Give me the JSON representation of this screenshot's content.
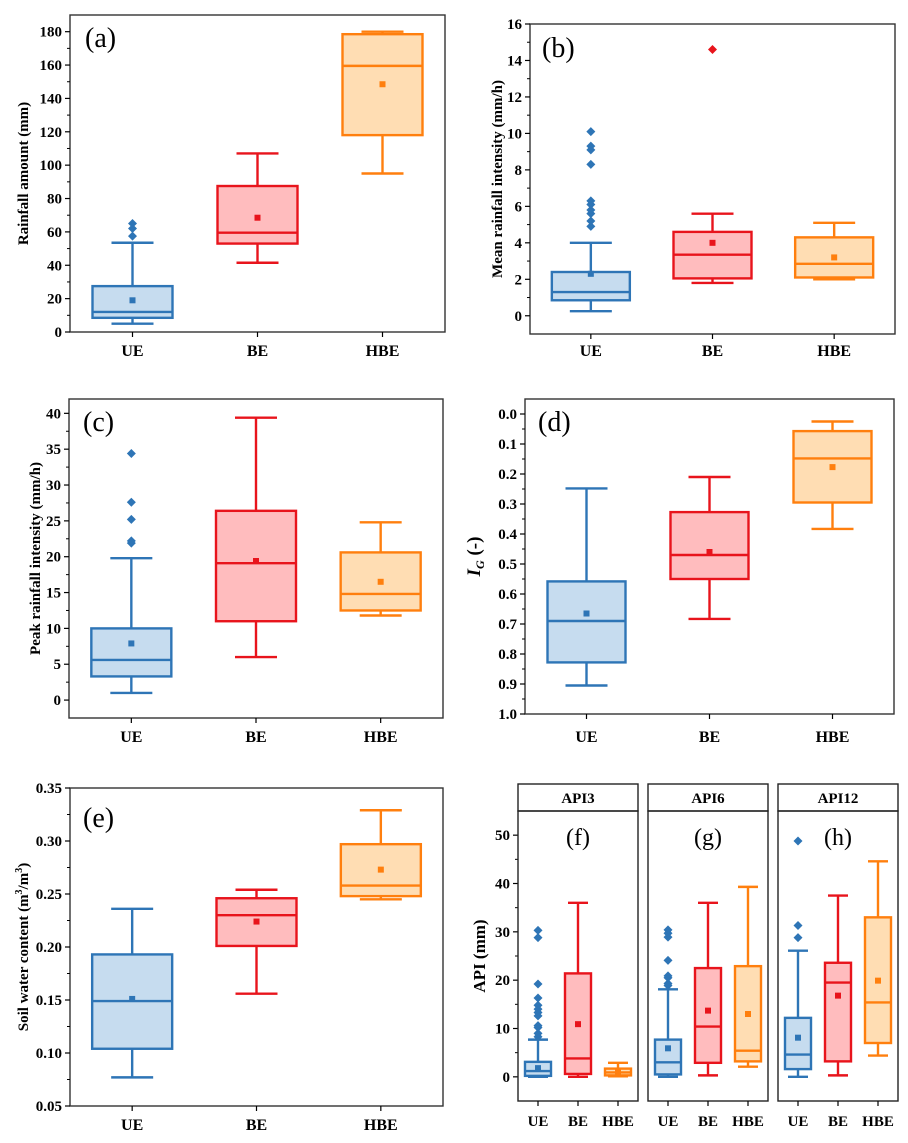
{
  "colors": {
    "UE": {
      "stroke": "#2E75B6",
      "fill": "#C6DCEF"
    },
    "BE": {
      "stroke": "#E8141C",
      "fill": "#FFBCBE"
    },
    "HBE": {
      "stroke": "#FF7F0E",
      "fill": "#FFDDB3"
    },
    "axis": "#000000"
  },
  "chart_data": [
    {
      "id": "a",
      "type": "box",
      "panel_label": "(a)",
      "ylabel": "Rainfall amount (mm)",
      "ylim": [
        0,
        190
      ],
      "yticks": [
        0,
        20,
        40,
        60,
        80,
        100,
        120,
        140,
        160,
        180
      ],
      "yinverted": false,
      "categories": [
        "UE",
        "BE",
        "HBE"
      ],
      "boxes": [
        {
          "category": "UE",
          "whisker_low": 5,
          "q1": 8.5,
          "median": 12,
          "q3": 27.5,
          "whisker_high": 53.5,
          "mean": 19,
          "outliers": [
            57.5,
            62,
            65
          ]
        },
        {
          "category": "BE",
          "whisker_low": 41.5,
          "q1": 53,
          "median": 59.5,
          "q3": 87.5,
          "whisker_high": 107,
          "mean": 68.5,
          "outliers": []
        },
        {
          "category": "HBE",
          "whisker_low": 95,
          "q1": 118,
          "median": 159.5,
          "q3": 178.5,
          "whisker_high": 180,
          "mean": 148.5,
          "outliers": []
        }
      ]
    },
    {
      "id": "b",
      "type": "box",
      "panel_label": "(b)",
      "ylabel": "Mean rainfall intensity (mm/h)",
      "ylim": [
        -1,
        16
      ],
      "yticks": [
        0,
        2,
        4,
        6,
        8,
        10,
        12,
        14,
        16
      ],
      "yinverted": false,
      "categories": [
        "UE",
        "BE",
        "HBE"
      ],
      "boxes": [
        {
          "category": "UE",
          "whisker_low": 0.25,
          "q1": 0.85,
          "median": 1.3,
          "q3": 2.4,
          "whisker_high": 4.0,
          "mean": 2.3,
          "outliers": [
            4.9,
            5.2,
            5.6,
            5.8,
            6.1,
            6.3,
            8.3,
            9.1,
            9.3,
            10.1
          ]
        },
        {
          "category": "BE",
          "whisker_low": 1.8,
          "q1": 2.05,
          "median": 3.35,
          "q3": 4.6,
          "whisker_high": 5.6,
          "mean": 4.0,
          "outliers": [
            14.6
          ]
        },
        {
          "category": "HBE",
          "whisker_low": 2.0,
          "q1": 2.1,
          "median": 2.85,
          "q3": 4.3,
          "whisker_high": 5.1,
          "mean": 3.2,
          "outliers": []
        }
      ]
    },
    {
      "id": "c",
      "type": "box",
      "panel_label": "(c)",
      "ylabel": "Peak rainfall intensity (mm/h)",
      "ylim": [
        -2.5,
        42
      ],
      "yticks": [
        0,
        5,
        10,
        15,
        20,
        25,
        30,
        35,
        40
      ],
      "yinverted": false,
      "categories": [
        "UE",
        "BE",
        "HBE"
      ],
      "boxes": [
        {
          "category": "UE",
          "whisker_low": 1.0,
          "q1": 3.3,
          "median": 5.6,
          "q3": 10.0,
          "whisker_high": 19.8,
          "mean": 7.9,
          "outliers": [
            21.9,
            22.2,
            25.2,
            27.6,
            34.4
          ]
        },
        {
          "category": "BE",
          "whisker_low": 6.0,
          "q1": 11.0,
          "median": 19.1,
          "q3": 26.4,
          "whisker_high": 39.4,
          "mean": 19.4,
          "outliers": []
        },
        {
          "category": "HBE",
          "whisker_low": 11.8,
          "q1": 12.5,
          "median": 14.8,
          "q3": 20.6,
          "whisker_high": 24.8,
          "mean": 16.5,
          "outliers": []
        }
      ]
    },
    {
      "id": "d",
      "type": "box",
      "panel_label": "(d)",
      "ylabel": "I_G (-)",
      "ylabel_main": "I",
      "ylabel_sub": "G",
      "ylabel_rest": " (-)",
      "ylim": [
        -0.05,
        1.0
      ],
      "yticks": [
        0.0,
        0.1,
        0.2,
        0.3,
        0.4,
        0.5,
        0.6,
        0.7,
        0.8,
        0.9,
        1.0
      ],
      "ytick_labels": [
        "0.0",
        "0.1",
        "0.2",
        "0.3",
        "0.4",
        "0.5",
        "0.6",
        "0.7",
        "0.8",
        "0.9",
        "1.0"
      ],
      "yinverted": true,
      "categories": [
        "UE",
        "BE",
        "HBE"
      ],
      "boxes": [
        {
          "category": "UE",
          "whisker_low": 0.905,
          "q1": 0.828,
          "median": 0.69,
          "q3": 0.558,
          "whisker_high": 0.248,
          "mean": 0.665,
          "outliers": []
        },
        {
          "category": "BE",
          "whisker_low": 0.683,
          "q1": 0.55,
          "median": 0.47,
          "q3": 0.327,
          "whisker_high": 0.21,
          "mean": 0.46,
          "outliers": []
        },
        {
          "category": "HBE",
          "whisker_low": 0.383,
          "q1": 0.295,
          "median": 0.148,
          "q3": 0.057,
          "whisker_high": 0.025,
          "mean": 0.177,
          "outliers": []
        }
      ]
    },
    {
      "id": "e",
      "type": "box",
      "panel_label": "(e)",
      "ylabel": "Soil water content (m3/m3)",
      "ylabel_parts": [
        "Soil water content (m",
        "3",
        "/m",
        "3",
        ")"
      ],
      "ylim": [
        0.05,
        0.35
      ],
      "yticks": [
        0.05,
        0.1,
        0.15,
        0.2,
        0.25,
        0.3,
        0.35
      ],
      "ytick_labels": [
        "0.05",
        "0.10",
        "0.15",
        "0.20",
        "0.25",
        "0.30",
        "0.35"
      ],
      "yinverted": false,
      "categories": [
        "UE",
        "BE",
        "HBE"
      ],
      "boxes": [
        {
          "category": "UE",
          "whisker_low": 0.077,
          "q1": 0.104,
          "median": 0.149,
          "q3": 0.193,
          "whisker_high": 0.236,
          "mean": 0.151,
          "outliers": []
        },
        {
          "category": "BE",
          "whisker_low": 0.156,
          "q1": 0.201,
          "median": 0.23,
          "q3": 0.246,
          "whisker_high": 0.254,
          "mean": 0.224,
          "outliers": []
        },
        {
          "category": "HBE",
          "whisker_low": 0.245,
          "q1": 0.248,
          "median": 0.258,
          "q3": 0.297,
          "whisker_high": 0.329,
          "mean": 0.273,
          "outliers": []
        }
      ]
    },
    {
      "id": "fgh",
      "type": "box",
      "ylabel": "API (mm)",
      "ylim": [
        -5,
        55
      ],
      "yticks": [
        0,
        10,
        20,
        30,
        40,
        50
      ],
      "yinverted": false,
      "facets": [
        {
          "title": "API3",
          "panel_label": "(f)",
          "categories": [
            "UE",
            "BE",
            "HBE"
          ],
          "boxes": [
            {
              "category": "UE",
              "whisker_low": 0,
              "q1": 0.2,
              "median": 1.2,
              "q3": 3.1,
              "whisker_high": 7.7,
              "mean": 1.8,
              "outliers": [
                8.3,
                9.0,
                10.2,
                10.6,
                12.6,
                13.3,
                14.0,
                14.8,
                16.3,
                19.2,
                28.8,
                30.3
              ]
            },
            {
              "category": "BE",
              "whisker_low": 0,
              "q1": 0.6,
              "median": 3.8,
              "q3": 21.4,
              "whisker_high": 36.0,
              "mean": 10.9,
              "outliers": []
            },
            {
              "category": "HBE",
              "whisker_low": 0.1,
              "q1": 0.3,
              "median": 0.9,
              "q3": 1.7,
              "whisker_high": 2.9,
              "mean": 1.0,
              "outliers": []
            }
          ]
        },
        {
          "title": "API6",
          "panel_label": "(g)",
          "categories": [
            "UE",
            "BE",
            "HBE"
          ],
          "boxes": [
            {
              "category": "UE",
              "whisker_low": 0,
              "q1": 0.5,
              "median": 3.0,
              "q3": 7.7,
              "whisker_high": 18.1,
              "mean": 5.9,
              "outliers": [
                18.9,
                19.3,
                20.5,
                20.9,
                24.1,
                28.9,
                29.7,
                30.4
              ]
            },
            {
              "category": "BE",
              "whisker_low": 0.3,
              "q1": 2.9,
              "median": 10.4,
              "q3": 22.5,
              "whisker_high": 36.0,
              "mean": 13.7,
              "outliers": []
            },
            {
              "category": "HBE",
              "whisker_low": 2.1,
              "q1": 3.2,
              "median": 5.4,
              "q3": 22.9,
              "whisker_high": 39.3,
              "mean": 13.0,
              "outliers": []
            }
          ]
        },
        {
          "title": "API12",
          "panel_label": "(h)",
          "categories": [
            "UE",
            "BE",
            "HBE"
          ],
          "boxes": [
            {
              "category": "UE",
              "whisker_low": 0,
              "q1": 1.6,
              "median": 4.6,
              "q3": 12.2,
              "whisker_high": 26.1,
              "mean": 8.1,
              "outliers": [
                28.8,
                31.3,
                48.8
              ]
            },
            {
              "category": "BE",
              "whisker_low": 0.3,
              "q1": 3.2,
              "median": 19.5,
              "q3": 23.6,
              "whisker_high": 37.5,
              "mean": 16.8,
              "outliers": []
            },
            {
              "category": "HBE",
              "whisker_low": 4.4,
              "q1": 7.0,
              "median": 15.4,
              "q3": 33.0,
              "whisker_high": 44.6,
              "mean": 19.9,
              "outliers": []
            }
          ]
        }
      ]
    }
  ]
}
